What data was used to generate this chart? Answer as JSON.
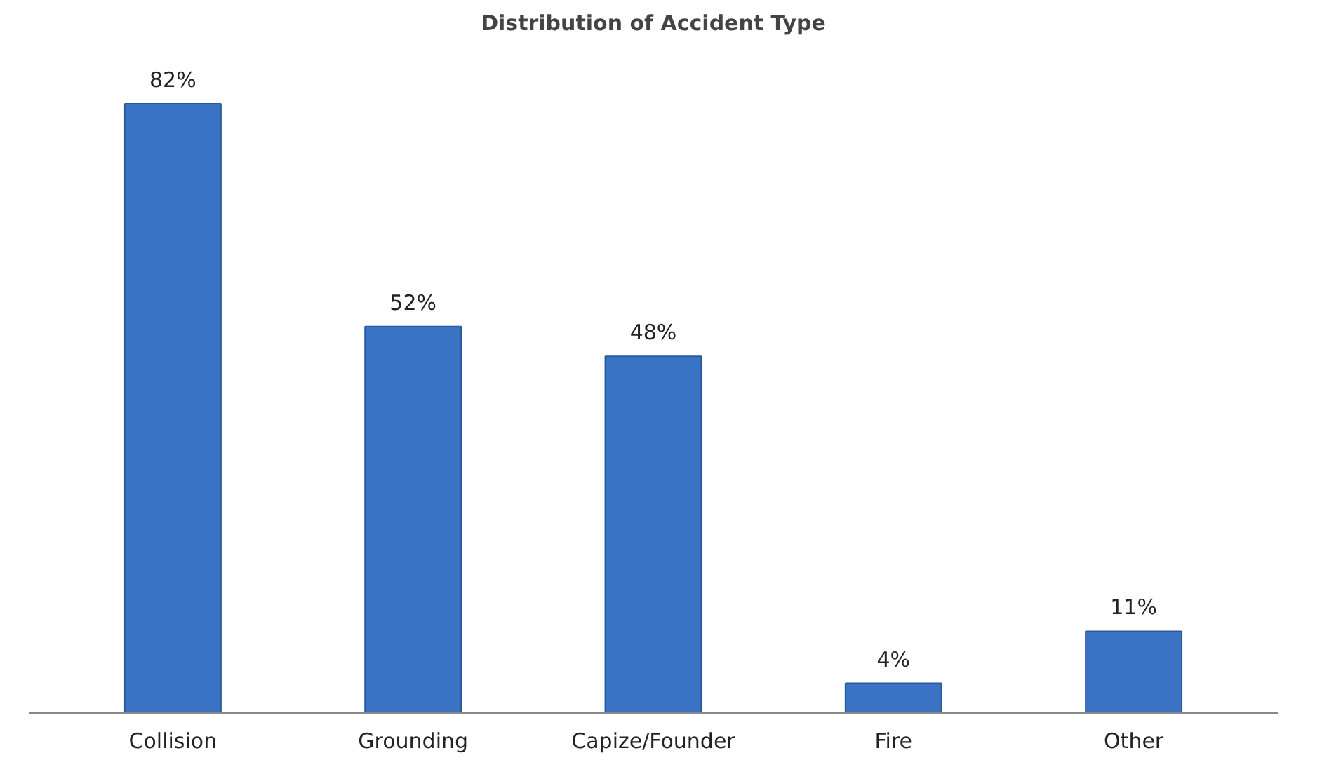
{
  "chart_data": {
    "type": "bar",
    "title": "Distribution of Accident Type",
    "categories": [
      "Collision",
      "Grounding",
      "Capize/Founder",
      "Fire",
      "Other"
    ],
    "values": [
      82,
      52,
      48,
      4,
      11
    ],
    "value_labels": [
      "82%",
      "52%",
      "48%",
      "4%",
      "11%"
    ],
    "color": "#3a72c4"
  }
}
